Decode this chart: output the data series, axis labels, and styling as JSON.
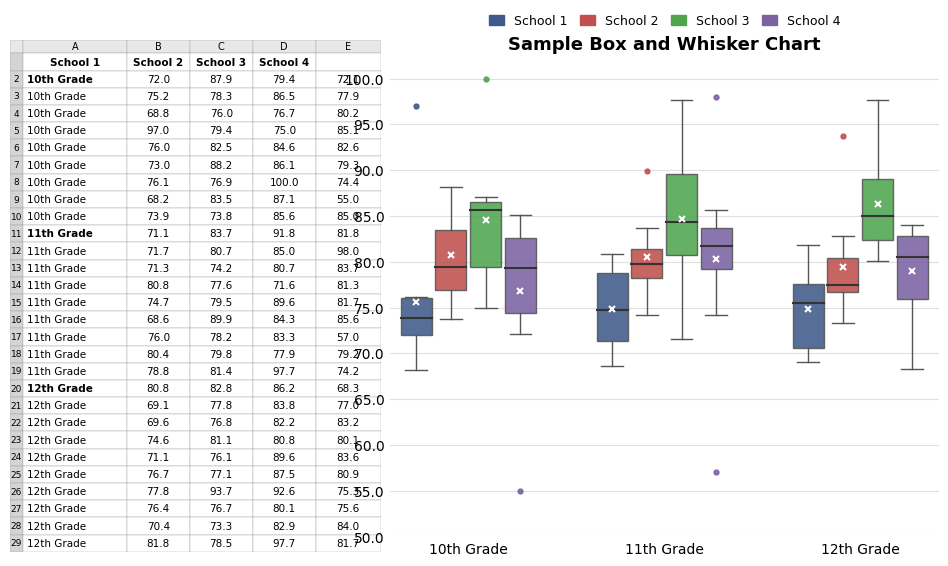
{
  "title": "Sample Box and Whisker Chart",
  "grades": [
    "10th Grade",
    "11th Grade",
    "12th Grade"
  ],
  "schools": [
    "School 1",
    "School 2",
    "School 3",
    "School 4"
  ],
  "colors": [
    "#3F5A8A",
    "#C0504D",
    "#4EA54E",
    "#7B62A3"
  ],
  "school1": {
    "10th": [
      72.0,
      75.2,
      68.8,
      97.0,
      76.0,
      73.0,
      76.1,
      68.2,
      73.9
    ],
    "11th": [
      71.1,
      71.7,
      71.3,
      80.8,
      74.7,
      68.6,
      76.0,
      80.4,
      78.8
    ],
    "12th": [
      80.8,
      69.1,
      69.6,
      74.6,
      71.1,
      76.7,
      77.8,
      76.4,
      70.4,
      81.8
    ]
  },
  "school2": {
    "10th": [
      87.9,
      78.3,
      76.0,
      79.4,
      82.5,
      88.2,
      76.9,
      83.5,
      73.8
    ],
    "11th": [
      83.7,
      80.7,
      74.2,
      77.6,
      79.5,
      89.9,
      78.2,
      79.8,
      81.4
    ],
    "12th": [
      82.8,
      77.8,
      76.8,
      81.1,
      76.1,
      77.1,
      93.7,
      76.7,
      73.3,
      78.5
    ]
  },
  "school3": {
    "10th": [
      79.4,
      86.5,
      76.7,
      75.0,
      84.6,
      86.1,
      100.0,
      87.1,
      85.6
    ],
    "11th": [
      91.8,
      85.0,
      80.7,
      71.6,
      89.6,
      84.3,
      83.3,
      77.9,
      97.7
    ],
    "12th": [
      86.2,
      83.8,
      82.2,
      80.8,
      89.6,
      87.5,
      92.6,
      80.1,
      82.9,
      97.7
    ]
  },
  "school4": {
    "10th": [
      72.1,
      77.9,
      80.2,
      85.1,
      82.6,
      79.3,
      74.4,
      55.0,
      85.0
    ],
    "11th": [
      81.8,
      98.0,
      83.7,
      81.3,
      81.7,
      85.6,
      57.0,
      79.2,
      74.2
    ],
    "12th": [
      68.3,
      77.0,
      83.2,
      80.1,
      83.6,
      80.9,
      75.3,
      75.6,
      84.0,
      81.7
    ]
  },
  "ylim": [
    50.0,
    102.0
  ],
  "yticks": [
    50.0,
    55.0,
    60.0,
    65.0,
    70.0,
    75.0,
    80.0,
    85.0,
    90.0,
    95.0,
    100.0
  ],
  "excel_bg": "#FFFFFF",
  "header_bg": "#D9D9D9",
  "cell_border": "#A0A0A0",
  "header_col_bg": "#D9D9D9",
  "row_header_cols": [
    "A",
    "B",
    "C",
    "D",
    "E"
  ],
  "col_letters": [
    "",
    "A",
    "B",
    "C",
    "D",
    "E"
  ],
  "table_header_row": [
    "",
    "School 1",
    "School 2",
    "School 3",
    "School 4"
  ],
  "row_labels_10th": [
    "10th Grade",
    "10th Grade",
    "10th Grade",
    "10th Grade",
    "10th Grade",
    "10th Grade",
    "10th Grade",
    "10th Grade",
    "10th Grade"
  ],
  "row_labels_11th": [
    "11th Grade",
    "11th Grade",
    "11th Grade",
    "11th Grade",
    "11th Grade",
    "11th Grade",
    "11th Grade",
    "11th Grade",
    "11th Grade"
  ],
  "row_labels_12th": [
    "12th Grade",
    "12th Grade",
    "12th Grade",
    "12th Grade",
    "12th Grade",
    "12th Grade",
    "12th Grade",
    "12th Grade",
    "12th Grade",
    "12th Grade"
  ],
  "chart_bg": "#FFFFFF",
  "grid_color": "#E0E0E0",
  "title_fontsize": 13,
  "legend_fontsize": 9,
  "axis_fontsize": 10,
  "table_fontsize": 7.5
}
